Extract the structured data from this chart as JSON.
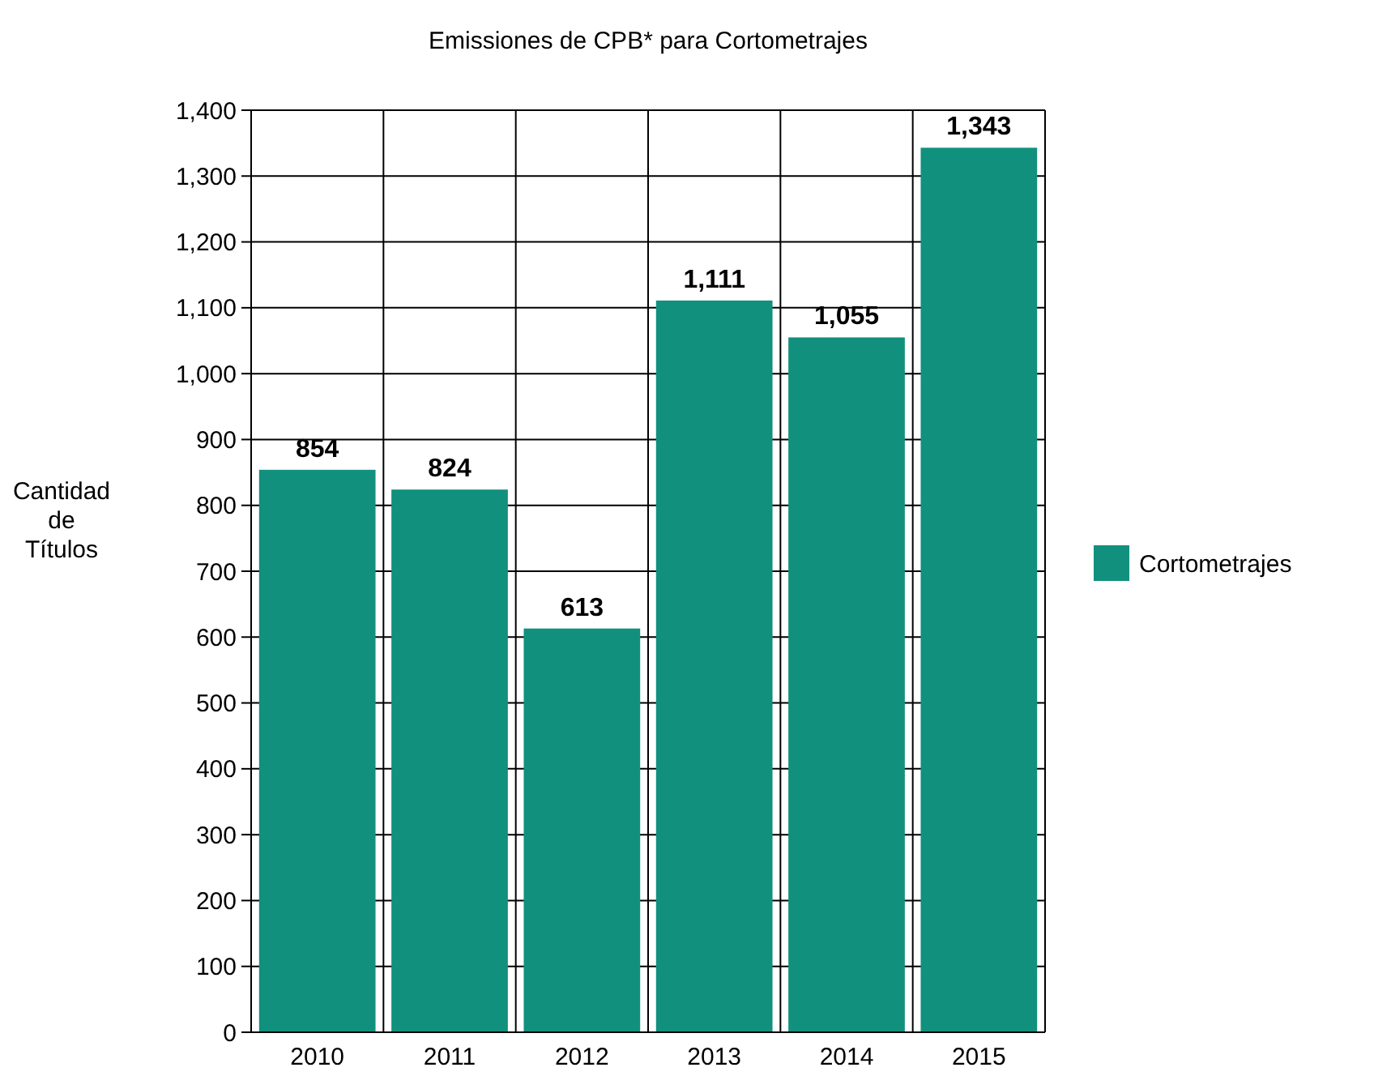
{
  "chart_data": {
    "type": "bar",
    "title": "Emissiones de CPB* para Cortometrajes",
    "ylabel": "Cantidad de Títulos",
    "categories": [
      "2010",
      "2011",
      "2012",
      "2013",
      "2014",
      "2015"
    ],
    "series": [
      {
        "name": "Cortometrajes",
        "color": "#12907e",
        "values": [
          854,
          824,
          613,
          1111,
          1055,
          1343
        ],
        "value_labels": [
          "854",
          "824",
          "613",
          "1,111",
          "1,055",
          "1,343"
        ]
      }
    ],
    "ylim": [
      0,
      1400
    ],
    "yticks": [
      0,
      100,
      200,
      300,
      400,
      500,
      600,
      700,
      800,
      900,
      {
        "value": 1000,
        "label": "1,000"
      },
      {
        "value": 1100,
        "label": "1,100"
      },
      {
        "value": 1200,
        "label": "1,200"
      },
      {
        "value": 1300,
        "label": "1,300"
      },
      {
        "value": 1400,
        "label": "1,400"
      }
    ],
    "grid": true,
    "legend": "right"
  }
}
